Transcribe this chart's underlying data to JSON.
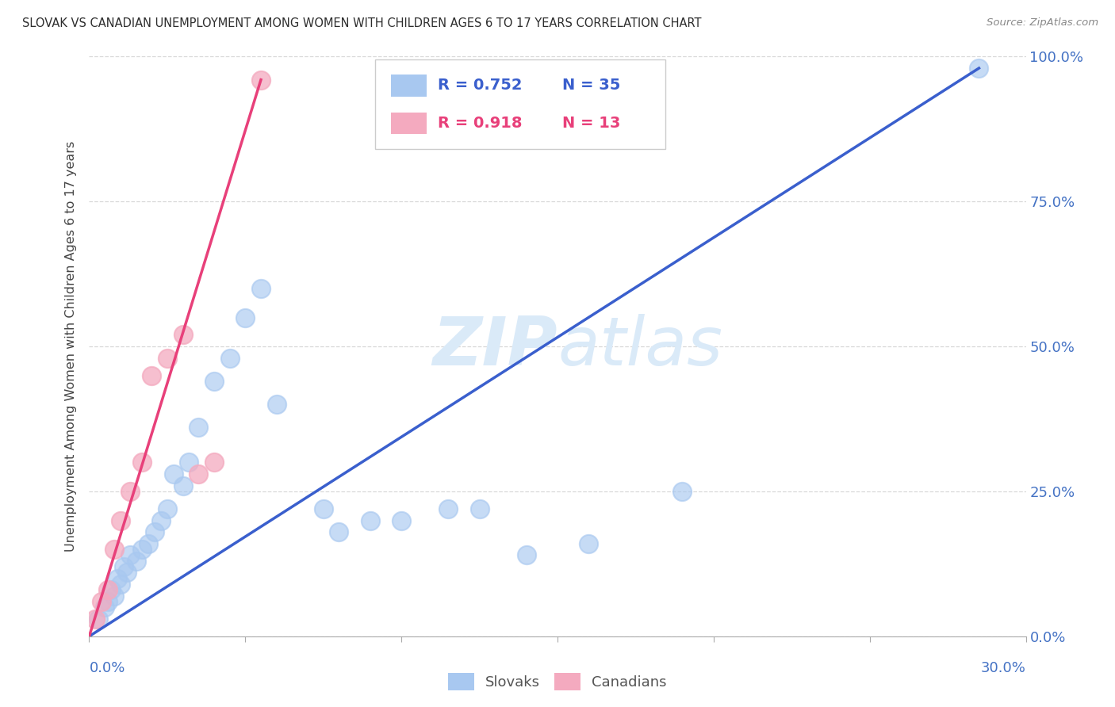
{
  "title": "SLOVAK VS CANADIAN UNEMPLOYMENT AMONG WOMEN WITH CHILDREN AGES 6 TO 17 YEARS CORRELATION CHART",
  "source": "Source: ZipAtlas.com",
  "ylabel": "Unemployment Among Women with Children Ages 6 to 17 years",
  "xlim": [
    0,
    30
  ],
  "ylim": [
    0,
    100
  ],
  "xtick_positions": [
    0,
    5,
    10,
    15,
    20,
    25,
    30
  ],
  "ytick_positions": [
    0,
    25,
    50,
    75,
    100
  ],
  "ytick_labels": [
    "0.0%",
    "25.0%",
    "50.0%",
    "75.0%",
    "100.0%"
  ],
  "x_zero_label": "0.0%",
  "x_thirty_label": "30.0%",
  "blue_scatter_color": "#A8C8F0",
  "pink_scatter_color": "#F4AABF",
  "blue_line_color": "#3A5FCD",
  "pink_line_color": "#E8407A",
  "axis_tick_color": "#4472C4",
  "ylabel_color": "#444444",
  "title_color": "#2d2d2d",
  "source_color": "#888888",
  "grid_color": "#d8d8d8",
  "watermark_color": "#daeaf8",
  "legend_r_blue": "R = 0.752",
  "legend_n_blue": "N = 35",
  "legend_r_pink": "R = 0.918",
  "legend_n_pink": "N = 13",
  "slovaks_x": [
    0.3,
    0.5,
    0.6,
    0.7,
    0.8,
    0.9,
    1.0,
    1.1,
    1.2,
    1.3,
    1.5,
    1.7,
    1.9,
    2.1,
    2.3,
    2.5,
    2.7,
    3.0,
    3.2,
    3.5,
    4.0,
    4.5,
    5.0,
    5.5,
    6.0,
    7.5,
    8.0,
    9.0,
    10.0,
    11.5,
    12.5,
    14.0,
    16.0,
    19.0,
    28.5
  ],
  "slovaks_y": [
    3,
    5,
    6,
    8,
    7,
    10,
    9,
    12,
    11,
    14,
    13,
    15,
    16,
    18,
    20,
    22,
    28,
    26,
    30,
    36,
    44,
    48,
    55,
    60,
    40,
    22,
    18,
    20,
    20,
    22,
    22,
    14,
    16,
    25,
    98
  ],
  "canadians_x": [
    0.2,
    0.4,
    0.6,
    0.8,
    1.0,
    1.3,
    1.7,
    2.0,
    2.5,
    3.0,
    3.5,
    4.0,
    5.5
  ],
  "canadians_y": [
    3,
    6,
    8,
    15,
    20,
    25,
    30,
    45,
    48,
    52,
    28,
    30,
    96
  ],
  "blue_line_x1": 0,
  "blue_line_y1": 0,
  "blue_line_x2": 28.5,
  "blue_line_y2": 98,
  "pink_line_x1": 0,
  "pink_line_y1": 0,
  "pink_line_x2": 5.5,
  "pink_line_y2": 96
}
